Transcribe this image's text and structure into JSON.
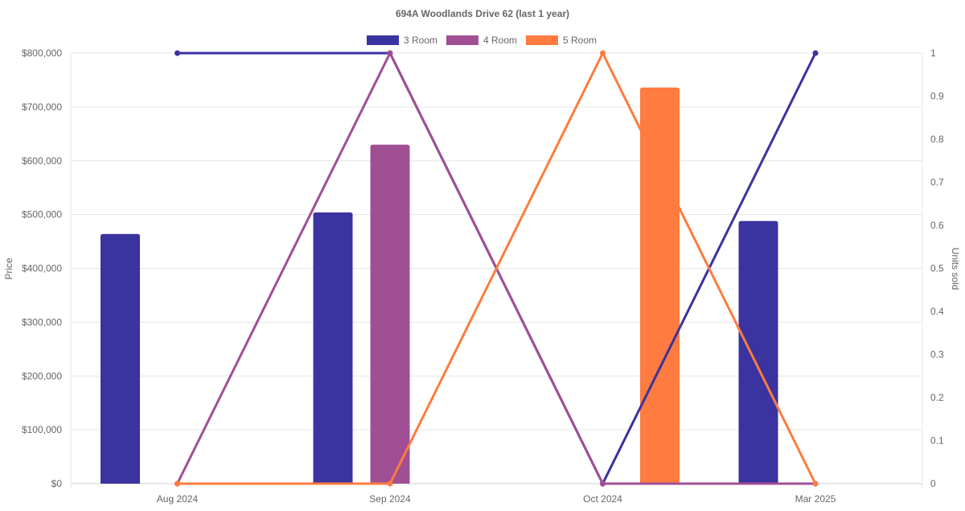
{
  "chart_data": {
    "type": "bar",
    "title": "694A Woodlands Drive 62 (last 1 year)",
    "categories": [
      "Aug 2024",
      "Sep 2024",
      "Oct 2024",
      "Mar 2025"
    ],
    "y_left": {
      "label": "Price",
      "min": 0,
      "max": 800000,
      "ticks": [
        "$0",
        "$100,000",
        "$200,000",
        "$300,000",
        "$400,000",
        "$500,000",
        "$600,000",
        "$700,000",
        "$800,000"
      ]
    },
    "y_right": {
      "label": "Units sold",
      "min": 0,
      "max": 1,
      "ticks": [
        "0",
        "0.1",
        "0.2",
        "0.3",
        "0.4",
        "0.5",
        "0.6",
        "0.7",
        "0.8",
        "0.9",
        "1"
      ]
    },
    "legend": {
      "position": "top"
    },
    "grid": true,
    "series": [
      {
        "name": "3 Room",
        "color": "#3a33a0",
        "price": [
          464000,
          504000,
          null,
          488000
        ],
        "units": [
          1,
          1,
          0,
          1
        ]
      },
      {
        "name": "4 Room",
        "color": "#a04f94",
        "price": [
          null,
          630000,
          null,
          null
        ],
        "units": [
          0,
          1,
          0,
          0
        ]
      },
      {
        "name": "5 Room",
        "color": "#ff7b3f",
        "price": [
          null,
          null,
          736000,
          null
        ],
        "units": [
          0,
          0,
          1,
          0
        ]
      }
    ]
  }
}
